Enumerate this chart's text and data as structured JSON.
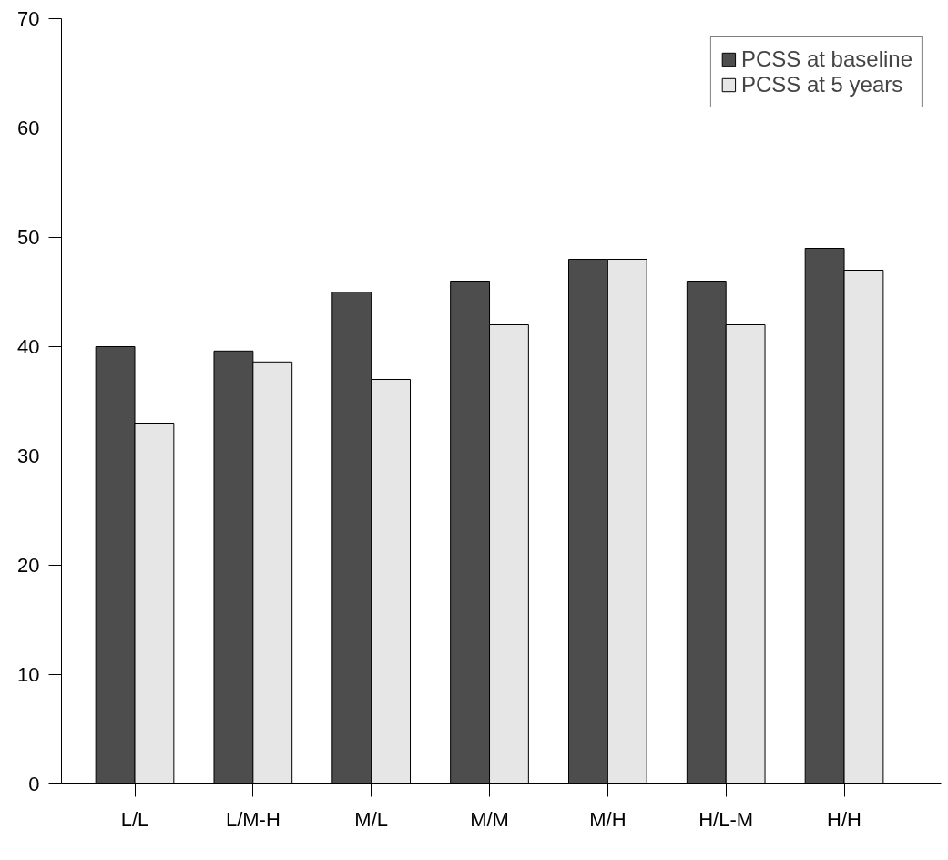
{
  "chart_data": {
    "type": "bar",
    "categories": [
      "L/L",
      "L/M-H",
      "M/L",
      "M/M",
      "M/H",
      "H/L-M",
      "H/H"
    ],
    "series": [
      {
        "name": "PCSS at baseline",
        "color": "#4d4d4d",
        "values": [
          40,
          39.6,
          45,
          46,
          48,
          46,
          49
        ]
      },
      {
        "name": "PCSS at 5 years",
        "color": "#e6e6e6",
        "values": [
          33,
          38.6,
          37,
          42,
          48,
          42,
          47
        ]
      }
    ],
    "ylim": [
      0,
      70
    ],
    "yticks": [
      0,
      10,
      20,
      30,
      40,
      50,
      60,
      70
    ],
    "grid": false,
    "legend": "top right"
  }
}
